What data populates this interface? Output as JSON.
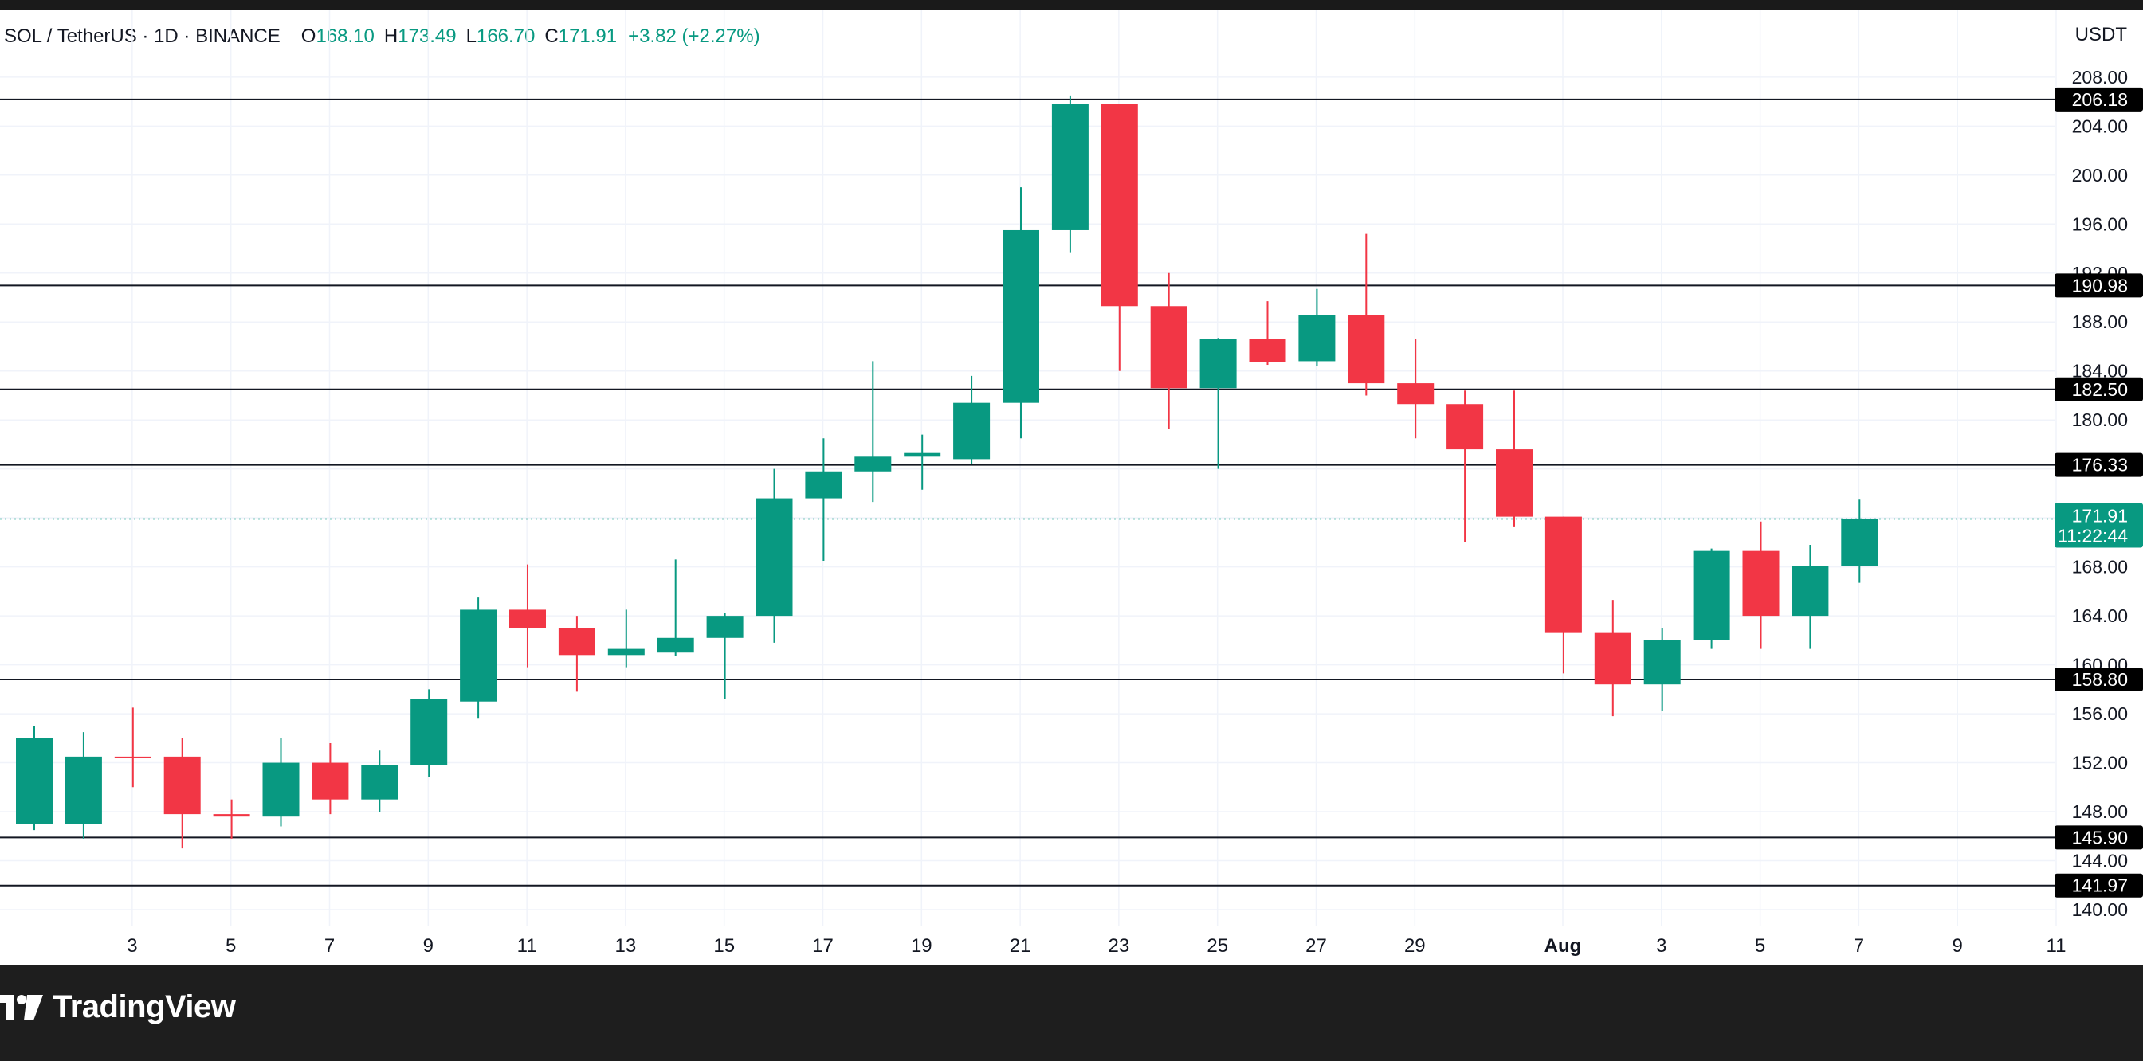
{
  "header": {
    "symbol": "SOL / TetherUS · 1D · BINANCE",
    "open_label": "O",
    "open": "168.10",
    "high_label": "H",
    "high": "173.49",
    "low_label": "L",
    "low": "166.70",
    "close_label": "C",
    "close": "171.91",
    "change": "+3.82 (+2.27%)"
  },
  "unit": "USDT",
  "brand": {
    "name": "TradingView",
    "icon": "tradingview-logo-icon"
  },
  "colors": {
    "up": "#089981",
    "down": "#F23645",
    "level_line": "#131722",
    "label_bg": "#000000",
    "last_price": "#089981"
  },
  "chart_data": {
    "type": "candlestick",
    "ylim": [
      138.5,
      210.5
    ],
    "yticks": [
      "140.00",
      "144.00",
      "148.00",
      "152.00",
      "156.00",
      "160.00",
      "164.00",
      "168.00",
      "172.00",
      "176.00",
      "180.00",
      "184.00",
      "188.00",
      "192.00",
      "196.00",
      "200.00",
      "204.00",
      "208.00"
    ],
    "xticks": [
      {
        "label": "3",
        "index": 1
      },
      {
        "label": "5",
        "index": 3
      },
      {
        "label": "7",
        "index": 5
      },
      {
        "label": "9",
        "index": 7
      },
      {
        "label": "11",
        "index": 9
      },
      {
        "label": "13",
        "index": 11
      },
      {
        "label": "15",
        "index": 13
      },
      {
        "label": "17",
        "index": 15
      },
      {
        "label": "19",
        "index": 17
      },
      {
        "label": "21",
        "index": 19
      },
      {
        "label": "23",
        "index": 21
      },
      {
        "label": "25",
        "index": 23
      },
      {
        "label": "27",
        "index": 25
      },
      {
        "label": "29",
        "index": 27
      },
      {
        "label": "Aug",
        "index": 30,
        "bold": true
      },
      {
        "label": "3",
        "index": 32
      },
      {
        "label": "5",
        "index": 34
      },
      {
        "label": "7",
        "index": 36
      },
      {
        "label": "9",
        "index": 38
      },
      {
        "label": "11",
        "index": 40
      }
    ],
    "candles": [
      {
        "o": 147.0,
        "h": 155.0,
        "l": 146.5,
        "c": 154.0
      },
      {
        "o": 147.0,
        "h": 154.5,
        "l": 145.8,
        "c": 152.5
      },
      {
        "o": 152.5,
        "h": 156.5,
        "l": 150.0,
        "c": 152.4
      },
      {
        "o": 152.5,
        "h": 154.0,
        "l": 145.0,
        "c": 147.8
      },
      {
        "o": 147.8,
        "h": 149.0,
        "l": 145.8,
        "c": 147.6
      },
      {
        "o": 147.6,
        "h": 154.0,
        "l": 146.8,
        "c": 152.0
      },
      {
        "o": 152.0,
        "h": 153.6,
        "l": 147.8,
        "c": 149.0
      },
      {
        "o": 149.0,
        "h": 153.0,
        "l": 148.0,
        "c": 151.8
      },
      {
        "o": 151.8,
        "h": 158.0,
        "l": 150.8,
        "c": 157.2
      },
      {
        "o": 157.0,
        "h": 165.5,
        "l": 155.6,
        "c": 164.5
      },
      {
        "o": 164.5,
        "h": 168.2,
        "l": 159.8,
        "c": 163.0
      },
      {
        "o": 163.0,
        "h": 164.0,
        "l": 157.8,
        "c": 160.8
      },
      {
        "o": 160.8,
        "h": 164.5,
        "l": 159.8,
        "c": 161.3
      },
      {
        "o": 161.0,
        "h": 168.6,
        "l": 160.7,
        "c": 162.2
      },
      {
        "o": 162.2,
        "h": 164.2,
        "l": 157.2,
        "c": 164.0
      },
      {
        "o": 164.0,
        "h": 176.0,
        "l": 161.8,
        "c": 173.6
      },
      {
        "o": 173.6,
        "h": 178.5,
        "l": 168.5,
        "c": 175.8
      },
      {
        "o": 175.8,
        "h": 184.8,
        "l": 173.3,
        "c": 177.0
      },
      {
        "o": 177.0,
        "h": 178.8,
        "l": 174.3,
        "c": 177.3
      },
      {
        "o": 176.8,
        "h": 183.6,
        "l": 176.4,
        "c": 181.4
      },
      {
        "o": 181.4,
        "h": 199.0,
        "l": 178.5,
        "c": 195.5
      },
      {
        "o": 195.5,
        "h": 206.5,
        "l": 193.7,
        "c": 205.8
      },
      {
        "o": 205.8,
        "h": 205.8,
        "l": 184.0,
        "c": 189.3
      },
      {
        "o": 189.3,
        "h": 192.0,
        "l": 179.3,
        "c": 182.6
      },
      {
        "o": 182.6,
        "h": 186.7,
        "l": 176.0,
        "c": 186.6
      },
      {
        "o": 186.6,
        "h": 189.7,
        "l": 184.5,
        "c": 184.7
      },
      {
        "o": 184.8,
        "h": 190.7,
        "l": 184.4,
        "c": 188.6
      },
      {
        "o": 188.6,
        "h": 195.2,
        "l": 182.0,
        "c": 183.0
      },
      {
        "o": 183.0,
        "h": 186.6,
        "l": 178.5,
        "c": 181.3
      },
      {
        "o": 181.3,
        "h": 182.4,
        "l": 170.0,
        "c": 177.6
      },
      {
        "o": 177.6,
        "h": 182.4,
        "l": 171.3,
        "c": 172.1
      },
      {
        "o": 172.1,
        "h": 172.1,
        "l": 159.3,
        "c": 162.6
      },
      {
        "o": 162.6,
        "h": 165.3,
        "l": 155.8,
        "c": 158.4
      },
      {
        "o": 158.4,
        "h": 163.0,
        "l": 156.2,
        "c": 162.0
      },
      {
        "o": 162.0,
        "h": 169.5,
        "l": 161.3,
        "c": 169.3
      },
      {
        "o": 169.3,
        "h": 171.7,
        "l": 161.3,
        "c": 164.0
      },
      {
        "o": 164.0,
        "h": 169.8,
        "l": 161.3,
        "c": 168.1
      },
      {
        "o": 168.1,
        "h": 173.49,
        "l": 166.7,
        "c": 171.91
      }
    ],
    "levels": [
      "206.18",
      "190.98",
      "182.50",
      "176.33",
      "158.80",
      "145.90",
      "141.97"
    ],
    "last_price": {
      "value": "171.91",
      "countdown": "11:22:44"
    }
  }
}
